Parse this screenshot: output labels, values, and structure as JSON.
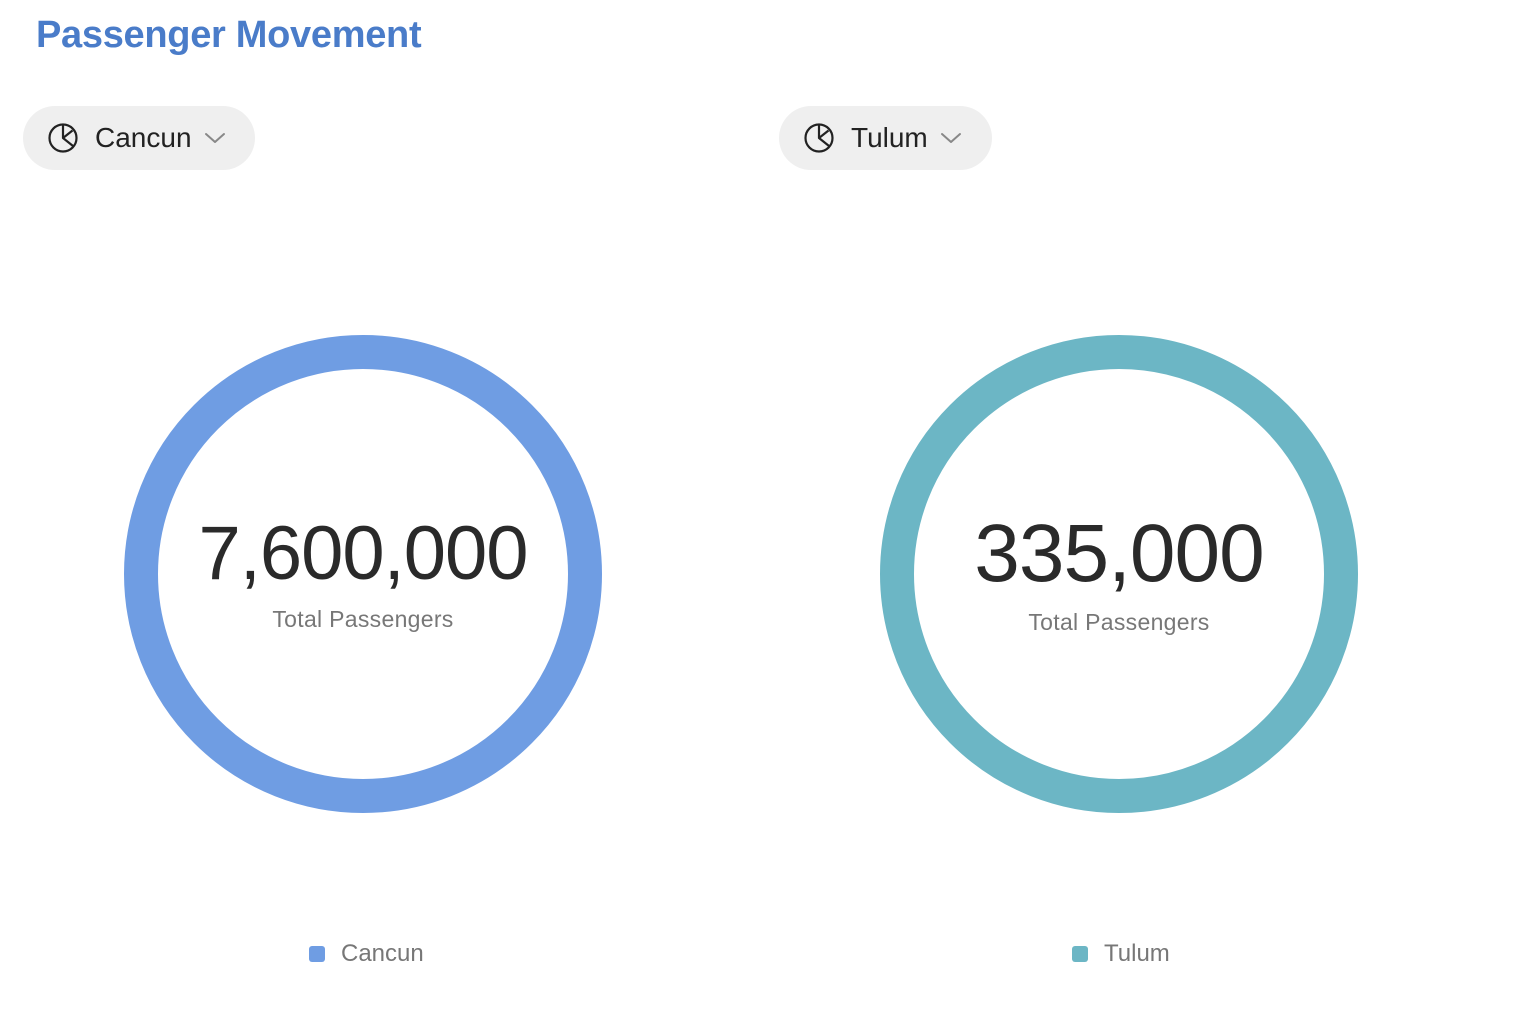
{
  "page": {
    "title": "Passenger Movement"
  },
  "panels": [
    {
      "selector": {
        "label": "Cancun",
        "icon": "pie-chart-icon",
        "chevron": "chevron-down-icon"
      },
      "center": {
        "value_text": "7,600,000",
        "label": "Total Passengers"
      },
      "legend": {
        "label": "Cancun"
      },
      "color": "#6f9de3"
    },
    {
      "selector": {
        "label": "Tulum",
        "icon": "pie-chart-icon",
        "chevron": "chevron-down-icon"
      },
      "center": {
        "value_text": "335,000",
        "label": "Total Passengers"
      },
      "legend": {
        "label": "Tulum"
      },
      "color": "#6cb6c5"
    }
  ],
  "chart_data": [
    {
      "type": "pie",
      "categories": [
        "Cancun"
      ],
      "values": [
        7600000
      ],
      "legend": "bottom",
      "colors": [
        "#6f9de3"
      ]
    },
    {
      "type": "pie",
      "categories": [
        "Tulum"
      ],
      "values": [
        335000
      ],
      "legend": "bottom",
      "colors": [
        "#6cb6c5"
      ]
    }
  ]
}
